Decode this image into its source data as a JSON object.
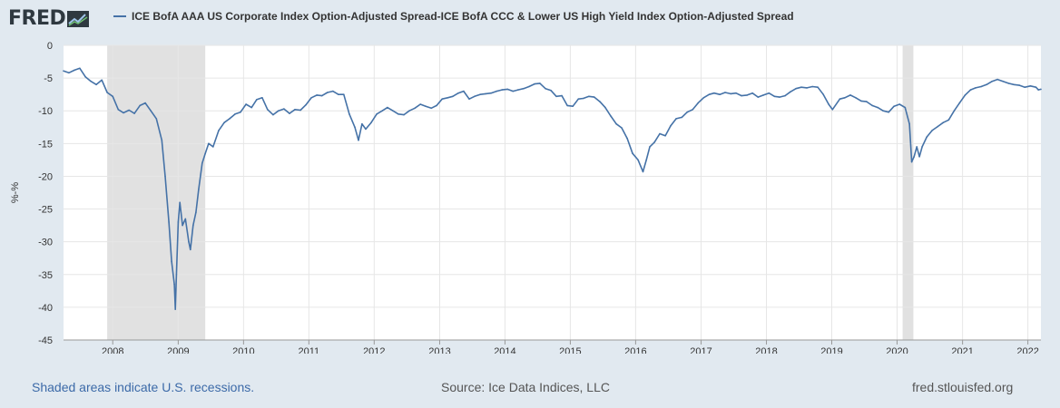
{
  "header": {
    "logo_text": "FRED",
    "legend_label": "ICE BofA AAA US Corporate Index Option-Adjusted Spread-ICE BofA CCC & Lower US High Yield Index Option-Adjusted Spread",
    "series_color": "#4572a7"
  },
  "footer": {
    "recession_note": "Shaded areas indicate U.S. recessions.",
    "source": "Source: Ice Data Indices, LLC",
    "site": "fred.stlouisfed.org"
  },
  "chart_data": {
    "type": "line",
    "title": "",
    "xlabel": "",
    "ylabel": "%-%",
    "ylim": [
      -45,
      0
    ],
    "xlim": [
      "2007-04-01",
      "2022-03-15"
    ],
    "grid": true,
    "yticks": [
      0,
      -5,
      -10,
      -15,
      -20,
      -25,
      -30,
      -35,
      -40,
      -45
    ],
    "xticks": [
      "2008",
      "2009",
      "2010",
      "2011",
      "2012",
      "2013",
      "2014",
      "2015",
      "2016",
      "2017",
      "2018",
      "2019",
      "2020",
      "2021",
      "2022"
    ],
    "recessions": [
      {
        "start": "2007-12-01",
        "end": "2009-06-01"
      },
      {
        "start": "2020-02-01",
        "end": "2020-04-01"
      }
    ],
    "series": [
      {
        "name": "ICE BofA AAA US Corporate Index Option-Adjusted Spread-ICE BofA CCC & Lower US High Yield Index Option-Adjusted Spread",
        "points": [
          [
            "2007-04-01",
            -3.9
          ],
          [
            "2007-05-01",
            -4.2
          ],
          [
            "2007-06-01",
            -3.8
          ],
          [
            "2007-07-01",
            -3.5
          ],
          [
            "2007-08-01",
            -4.8
          ],
          [
            "2007-09-01",
            -5.5
          ],
          [
            "2007-10-01",
            -6.0
          ],
          [
            "2007-11-01",
            -5.3
          ],
          [
            "2007-12-01",
            -7.2
          ],
          [
            "2008-01-01",
            -7.8
          ],
          [
            "2008-02-01",
            -9.8
          ],
          [
            "2008-03-01",
            -10.3
          ],
          [
            "2008-04-01",
            -9.9
          ],
          [
            "2008-05-01",
            -10.4
          ],
          [
            "2008-06-01",
            -9.2
          ],
          [
            "2008-07-01",
            -8.8
          ],
          [
            "2008-08-01",
            -10.0
          ],
          [
            "2008-09-01",
            -11.2
          ],
          [
            "2008-10-01",
            -14.5
          ],
          [
            "2008-10-20",
            -20.0
          ],
          [
            "2008-11-10",
            -27.0
          ],
          [
            "2008-11-25",
            -33.0
          ],
          [
            "2008-12-10",
            -36.5
          ],
          [
            "2008-12-16",
            -40.3
          ],
          [
            "2008-12-22",
            -35.0
          ],
          [
            "2009-01-01",
            -27.0
          ],
          [
            "2009-01-10",
            -24.0
          ],
          [
            "2009-01-25",
            -27.5
          ],
          [
            "2009-02-10",
            -26.5
          ],
          [
            "2009-03-01",
            -30.0
          ],
          [
            "2009-03-10",
            -31.2
          ],
          [
            "2009-03-25",
            -27.5
          ],
          [
            "2009-04-10",
            -25.5
          ],
          [
            "2009-04-25",
            -22.0
          ],
          [
            "2009-05-15",
            -18.0
          ],
          [
            "2009-06-01",
            -16.5
          ],
          [
            "2009-06-20",
            -15.0
          ],
          [
            "2009-07-15",
            -15.5
          ],
          [
            "2009-08-15",
            -13.0
          ],
          [
            "2009-09-15",
            -11.8
          ],
          [
            "2009-10-15",
            -11.2
          ],
          [
            "2009-11-15",
            -10.5
          ],
          [
            "2009-12-15",
            -10.2
          ],
          [
            "2010-01-15",
            -9.0
          ],
          [
            "2010-02-15",
            -9.5
          ],
          [
            "2010-03-15",
            -8.3
          ],
          [
            "2010-04-15",
            -8.0
          ],
          [
            "2010-05-15",
            -9.8
          ],
          [
            "2010-06-15",
            -10.6
          ],
          [
            "2010-07-15",
            -10.0
          ],
          [
            "2010-08-15",
            -9.7
          ],
          [
            "2010-09-15",
            -10.4
          ],
          [
            "2010-10-15",
            -9.8
          ],
          [
            "2010-11-15",
            -9.9
          ],
          [
            "2010-12-15",
            -9.1
          ],
          [
            "2011-01-15",
            -8.0
          ],
          [
            "2011-02-15",
            -7.6
          ],
          [
            "2011-03-15",
            -7.7
          ],
          [
            "2011-04-15",
            -7.2
          ],
          [
            "2011-05-15",
            -7.0
          ],
          [
            "2011-06-15",
            -7.5
          ],
          [
            "2011-07-15",
            -7.5
          ],
          [
            "2011-08-15",
            -10.5
          ],
          [
            "2011-09-15",
            -12.5
          ],
          [
            "2011-10-05",
            -14.5
          ],
          [
            "2011-10-25",
            -12.0
          ],
          [
            "2011-11-15",
            -12.8
          ],
          [
            "2011-12-15",
            -11.8
          ],
          [
            "2012-01-15",
            -10.5
          ],
          [
            "2012-02-15",
            -10.0
          ],
          [
            "2012-03-15",
            -9.5
          ],
          [
            "2012-04-15",
            -10.0
          ],
          [
            "2012-05-15",
            -10.5
          ],
          [
            "2012-06-15",
            -10.6
          ],
          [
            "2012-07-15",
            -10.0
          ],
          [
            "2012-08-15",
            -9.6
          ],
          [
            "2012-09-15",
            -9.0
          ],
          [
            "2012-10-15",
            -9.3
          ],
          [
            "2012-11-15",
            -9.6
          ],
          [
            "2012-12-15",
            -9.2
          ],
          [
            "2013-01-15",
            -8.2
          ],
          [
            "2013-02-15",
            -8.0
          ],
          [
            "2013-03-15",
            -7.8
          ],
          [
            "2013-04-15",
            -7.3
          ],
          [
            "2013-05-15",
            -7.0
          ],
          [
            "2013-06-15",
            -8.2
          ],
          [
            "2013-07-15",
            -7.8
          ],
          [
            "2013-08-15",
            -7.5
          ],
          [
            "2013-09-15",
            -7.4
          ],
          [
            "2013-10-15",
            -7.3
          ],
          [
            "2013-11-15",
            -7.0
          ],
          [
            "2013-12-15",
            -6.8
          ],
          [
            "2014-01-15",
            -6.7
          ],
          [
            "2014-02-15",
            -7.0
          ],
          [
            "2014-03-15",
            -6.8
          ],
          [
            "2014-04-15",
            -6.6
          ],
          [
            "2014-05-15",
            -6.3
          ],
          [
            "2014-06-15",
            -5.9
          ],
          [
            "2014-07-15",
            -5.8
          ],
          [
            "2014-08-15",
            -6.6
          ],
          [
            "2014-09-15",
            -6.9
          ],
          [
            "2014-10-15",
            -7.8
          ],
          [
            "2014-11-15",
            -7.7
          ],
          [
            "2014-12-15",
            -9.2
          ],
          [
            "2015-01-15",
            -9.3
          ],
          [
            "2015-02-15",
            -8.2
          ],
          [
            "2015-03-15",
            -8.1
          ],
          [
            "2015-04-15",
            -7.8
          ],
          [
            "2015-05-15",
            -7.9
          ],
          [
            "2015-06-15",
            -8.6
          ],
          [
            "2015-07-15",
            -9.5
          ],
          [
            "2015-08-15",
            -10.8
          ],
          [
            "2015-09-15",
            -12.0
          ],
          [
            "2015-10-15",
            -12.6
          ],
          [
            "2015-11-15",
            -14.2
          ],
          [
            "2015-12-15",
            -16.5
          ],
          [
            "2016-01-15",
            -17.5
          ],
          [
            "2016-02-11",
            -19.3
          ],
          [
            "2016-03-01",
            -17.5
          ],
          [
            "2016-03-20",
            -15.5
          ],
          [
            "2016-04-15",
            -14.8
          ],
          [
            "2016-05-15",
            -13.5
          ],
          [
            "2016-06-15",
            -13.8
          ],
          [
            "2016-07-15",
            -12.3
          ],
          [
            "2016-08-15",
            -11.2
          ],
          [
            "2016-09-15",
            -11.0
          ],
          [
            "2016-10-15",
            -10.2
          ],
          [
            "2016-11-15",
            -9.8
          ],
          [
            "2016-12-15",
            -8.8
          ],
          [
            "2017-01-15",
            -8.0
          ],
          [
            "2017-02-15",
            -7.5
          ],
          [
            "2017-03-15",
            -7.3
          ],
          [
            "2017-04-15",
            -7.5
          ],
          [
            "2017-05-15",
            -7.2
          ],
          [
            "2017-06-15",
            -7.4
          ],
          [
            "2017-07-15",
            -7.3
          ],
          [
            "2017-08-15",
            -7.7
          ],
          [
            "2017-09-15",
            -7.6
          ],
          [
            "2017-10-15",
            -7.3
          ],
          [
            "2017-11-15",
            -7.9
          ],
          [
            "2017-12-15",
            -7.6
          ],
          [
            "2018-01-15",
            -7.3
          ],
          [
            "2018-02-15",
            -7.8
          ],
          [
            "2018-03-15",
            -7.9
          ],
          [
            "2018-04-15",
            -7.7
          ],
          [
            "2018-05-15",
            -7.1
          ],
          [
            "2018-06-15",
            -6.6
          ],
          [
            "2018-07-15",
            -6.4
          ],
          [
            "2018-08-15",
            -6.5
          ],
          [
            "2018-09-15",
            -6.3
          ],
          [
            "2018-10-15",
            -6.4
          ],
          [
            "2018-11-15",
            -7.5
          ],
          [
            "2018-12-15",
            -9.0
          ],
          [
            "2019-01-05",
            -9.8
          ],
          [
            "2019-02-15",
            -8.2
          ],
          [
            "2019-03-15",
            -8.0
          ],
          [
            "2019-04-15",
            -7.6
          ],
          [
            "2019-05-15",
            -8.0
          ],
          [
            "2019-06-15",
            -8.5
          ],
          [
            "2019-07-15",
            -8.6
          ],
          [
            "2019-08-15",
            -9.2
          ],
          [
            "2019-09-15",
            -9.5
          ],
          [
            "2019-10-15",
            -10.0
          ],
          [
            "2019-11-15",
            -10.2
          ],
          [
            "2019-12-15",
            -9.3
          ],
          [
            "2020-01-15",
            -9.0
          ],
          [
            "2020-02-15",
            -9.5
          ],
          [
            "2020-03-10",
            -12.0
          ],
          [
            "2020-03-23",
            -17.8
          ],
          [
            "2020-04-05",
            -17.0
          ],
          [
            "2020-04-20",
            -15.5
          ],
          [
            "2020-05-05",
            -17.0
          ],
          [
            "2020-05-20",
            -15.5
          ],
          [
            "2020-06-15",
            -14.0
          ],
          [
            "2020-07-15",
            -13.0
          ],
          [
            "2020-08-15",
            -12.4
          ],
          [
            "2020-09-15",
            -11.8
          ],
          [
            "2020-10-15",
            -11.4
          ],
          [
            "2020-11-15",
            -10.0
          ],
          [
            "2020-12-15",
            -8.8
          ],
          [
            "2021-01-15",
            -7.6
          ],
          [
            "2021-02-15",
            -6.8
          ],
          [
            "2021-03-15",
            -6.5
          ],
          [
            "2021-04-15",
            -6.3
          ],
          [
            "2021-05-15",
            -6.0
          ],
          [
            "2021-06-15",
            -5.5
          ],
          [
            "2021-07-15",
            -5.2
          ],
          [
            "2021-08-15",
            -5.5
          ],
          [
            "2021-09-15",
            -5.8
          ],
          [
            "2021-10-15",
            -6.0
          ],
          [
            "2021-11-15",
            -6.1
          ],
          [
            "2021-12-15",
            -6.4
          ],
          [
            "2022-01-15",
            -6.2
          ],
          [
            "2022-02-15",
            -6.4
          ],
          [
            "2022-03-01",
            -6.8
          ],
          [
            "2022-03-15",
            -6.7
          ]
        ]
      }
    ]
  }
}
